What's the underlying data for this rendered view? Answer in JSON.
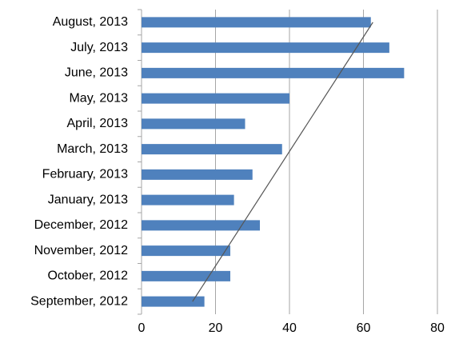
{
  "chart_data": {
    "type": "bar",
    "orientation": "horizontal",
    "categories": [
      "September, 2012",
      "October, 2012",
      "November, 2012",
      "December, 2012",
      "January, 2013",
      "February, 2013",
      "March, 2013",
      "April, 2013",
      "May, 2013",
      "June, 2013",
      "July, 2013",
      "August, 2013"
    ],
    "values": [
      17,
      24,
      24,
      32,
      25,
      30,
      38,
      28,
      40,
      71,
      67,
      62
    ],
    "color": "#4f81bd",
    "xlim": [
      0,
      80
    ],
    "xticks": [
      0,
      20,
      40,
      60,
      80
    ],
    "grid": true,
    "trendline": "linear",
    "trendline_color": "#555555"
  }
}
